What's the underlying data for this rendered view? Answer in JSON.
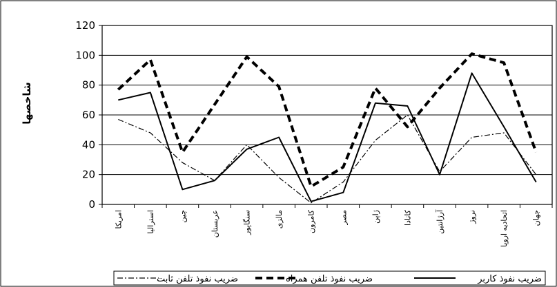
{
  "chart_data": {
    "type": "line",
    "title": "",
    "ylabel": "شاخصها",
    "xlabel": "",
    "ylim": [
      0,
      120
    ],
    "yticks": [
      0,
      20,
      40,
      60,
      80,
      100,
      120
    ],
    "grid": true,
    "legend_position": "bottom",
    "categories": [
      "امریکا",
      "استرالیا",
      "چین",
      "عربستان",
      "سنگاپور",
      "مالزی",
      "کامرون",
      "مصر",
      "ژاپن",
      "کانادا",
      "آرژانتین",
      "نروژ",
      "اتحادیه اروپا",
      "جهان"
    ],
    "series": [
      {
        "name": "ضریب نفوذ کاربر",
        "style": "solid",
        "values": [
          70,
          75,
          10,
          16,
          37,
          45,
          2,
          8,
          68,
          66,
          20,
          88,
          52,
          15
        ]
      },
      {
        "name": "ضریب نفوذ تلفن همراه",
        "style": "dashed",
        "values": [
          77,
          97,
          35,
          67,
          99,
          79,
          12,
          25,
          78,
          52,
          78,
          101,
          95,
          35
        ]
      },
      {
        "name": "ضریب نفوذ تلفن ثابت",
        "style": "dashdot",
        "values": [
          57,
          48,
          28,
          16,
          40,
          18,
          1,
          15,
          43,
          60,
          22,
          45,
          48,
          20
        ]
      }
    ],
    "colors": {
      "line": "#000000",
      "grid": "#000000",
      "plot_background": "#ffffff"
    }
  }
}
